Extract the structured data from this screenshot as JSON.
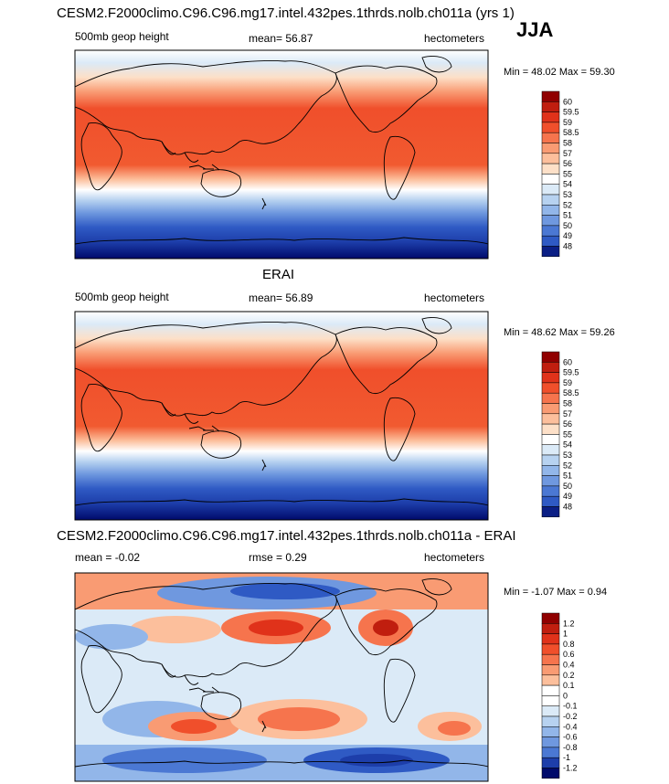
{
  "season": "JJA",
  "colors": {
    "pos": [
      "#ffffff",
      "#fde0c8",
      "#fcbf9c",
      "#f99b73",
      "#f6744d",
      "#f04f2b",
      "#e0321a",
      "#c01e0f",
      "#900000"
    ],
    "neg": [
      "#ffffff",
      "#dbeaf7",
      "#b7d2f0",
      "#92b6e9",
      "#6f98df",
      "#4b78d3",
      "#2f5ac4",
      "#1d3eaa",
      "#0b1f85",
      "#000a6b"
    ],
    "stroke": "#000000"
  },
  "panels": [
    {
      "title": "CESM2.F2000climo.C96.C96.mg17.intel.432pes.1thrds.nolb.ch011a (yrs 1)",
      "left_label": "500mb geop height",
      "center_label": "mean=  56.87",
      "units": "hectometers",
      "minmax": "Min =  48.02 Max =  59.30",
      "colorbar": [
        "60",
        "59.5",
        "59",
        "58.5",
        "58",
        "57",
        "56",
        "55",
        "54",
        "53",
        "52",
        "51",
        "50",
        "49",
        "48"
      ]
    },
    {
      "title": "ERAI",
      "left_label": "500mb geop height",
      "center_label": "mean=  56.89",
      "units": "hectometers",
      "minmax": "Min =  48.62 Max =  59.26",
      "colorbar": [
        "60",
        "59.5",
        "59",
        "58.5",
        "58",
        "57",
        "56",
        "55",
        "54",
        "53",
        "52",
        "51",
        "50",
        "49",
        "48"
      ]
    },
    {
      "title": "CESM2.F2000climo.C96.C96.mg17.intel.432pes.1thrds.nolb.ch011a - ERAI",
      "left_label": "mean =  -0.02",
      "center_label": "rmse =   0.29",
      "units": "hectometers",
      "minmax": "Min =  -1.07 Max =   0.94",
      "colorbar": [
        "1.2",
        "1",
        "0.8",
        "0.6",
        "0.4",
        "0.2",
        "0.1",
        "0",
        "-0.1",
        "-0.2",
        "-0.4",
        "-0.6",
        "-0.8",
        "-1",
        "-1.2"
      ]
    }
  ]
}
